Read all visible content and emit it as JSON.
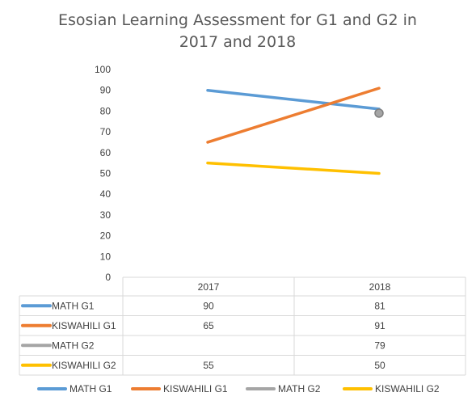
{
  "chart_data": {
    "type": "line",
    "title_lines": [
      "Esosian Learning Assessment for G1 and G2 in",
      "2017 and 2018"
    ],
    "categories": [
      "2017",
      "2018"
    ],
    "ylim": [
      0,
      100
    ],
    "yticks": [
      0,
      10,
      20,
      30,
      40,
      50,
      60,
      70,
      80,
      90,
      100
    ],
    "grid": false,
    "legend_position": "bottom",
    "data_table": true,
    "series": [
      {
        "name": "MATH G1",
        "values": [
          90,
          81
        ],
        "color": "#5B9BD5"
      },
      {
        "name": "KISWAHILI G1",
        "values": [
          65,
          91
        ],
        "color": "#ED7D31"
      },
      {
        "name": "MATH G2",
        "values": [
          null,
          79
        ],
        "color": "#A5A5A5"
      },
      {
        "name": "KISWAHILI G2",
        "values": [
          55,
          50
        ],
        "color": "#FFC000"
      }
    ],
    "table_rows": [
      {
        "label": "MATH G1",
        "cells": [
          "90",
          "81"
        ]
      },
      {
        "label": "KISWAHILI G1",
        "cells": [
          "65",
          "91"
        ]
      },
      {
        "label": "MATH G2",
        "cells": [
          "",
          "79"
        ]
      },
      {
        "label": "KISWAHILI G2",
        "cells": [
          "55",
          "50"
        ]
      }
    ]
  }
}
